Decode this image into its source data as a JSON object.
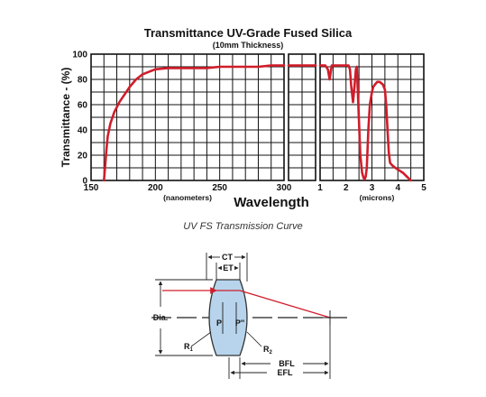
{
  "chart_data": {
    "type": "line",
    "title": "Transmittance UV-Grade Fused Silica",
    "subtitle": "(10mm Thickness)",
    "ylabel": "Transmittance - (%)",
    "xlabel": "Wavelength",
    "ylim": [
      0,
      100
    ],
    "y_ticks": [
      "0",
      "20",
      "40",
      "60",
      "80",
      "100"
    ],
    "grid": true,
    "panels": [
      {
        "unit_label": "(nanometers)",
        "xlim": [
          150,
          300
        ],
        "x_ticks": [
          "150",
          "200",
          "250",
          "300"
        ],
        "series": [
          {
            "x": [
              160,
              161,
              162,
              163,
              165,
              168,
              172,
              176,
              180,
              185,
              190,
              195,
              200,
              210,
              220,
              230,
              240,
              250,
              260,
              270,
              280,
              290,
              300
            ],
            "values": [
              0,
              12,
              25,
              35,
              45,
              54,
              62,
              68,
              74,
              80,
              84,
              86,
              88,
              89,
              89,
              89,
              89,
              90,
              90,
              90,
              90,
              91,
              91
            ]
          }
        ]
      },
      {
        "unit_label": "",
        "x_ticks": [],
        "series": [
          {
            "x": [
              0,
              1
            ],
            "values": [
              91,
              91
            ]
          }
        ]
      },
      {
        "unit_label": "(microns)",
        "xlim": [
          1,
          5
        ],
        "x_ticks": [
          "1",
          "2",
          "3",
          "4",
          "5"
        ],
        "series": [
          {
            "x": [
              1.0,
              1.2,
              1.3,
              1.37,
              1.41,
              1.45,
              1.5,
              1.6,
              1.8,
              2.0,
              2.1,
              2.15,
              2.2,
              2.27,
              2.33,
              2.38,
              2.42,
              2.47,
              2.55,
              2.62,
              2.68,
              2.72,
              2.76,
              2.8,
              2.86,
              2.92,
              3.0,
              3.05,
              3.12,
              3.2,
              3.3,
              3.42,
              3.5,
              3.55,
              3.6,
              3.65,
              3.7,
              3.78,
              3.9,
              4.05,
              4.2,
              4.35,
              4.5
            ],
            "values": [
              91,
              91,
              88,
              80,
              86,
              91,
              91,
              91,
              91,
              91,
              91,
              88,
              75,
              62,
              75,
              88,
              90,
              62,
              20,
              6,
              2,
              1,
              3,
              10,
              40,
              60,
              70,
              74,
              76,
              78,
              78,
              76,
              72,
              60,
              40,
              22,
              14,
              12,
              10,
              8,
              6,
              3,
              0
            ]
          }
        ]
      }
    ]
  },
  "caption": "UV FS Transmission Curve",
  "diagram": {
    "labels": {
      "ct": "CT",
      "et": "ET",
      "dia": "Dia.",
      "p": "P",
      "p_prime": "P''",
      "r1": "R",
      "r1_sub": "1",
      "r2": "R",
      "r2_sub": "2",
      "bfl": "BFL",
      "efl": "EFL"
    },
    "colors": {
      "lens_fill": "#b7d4ec",
      "ray": "#d01d2a",
      "curve": "#d01d2a"
    }
  }
}
